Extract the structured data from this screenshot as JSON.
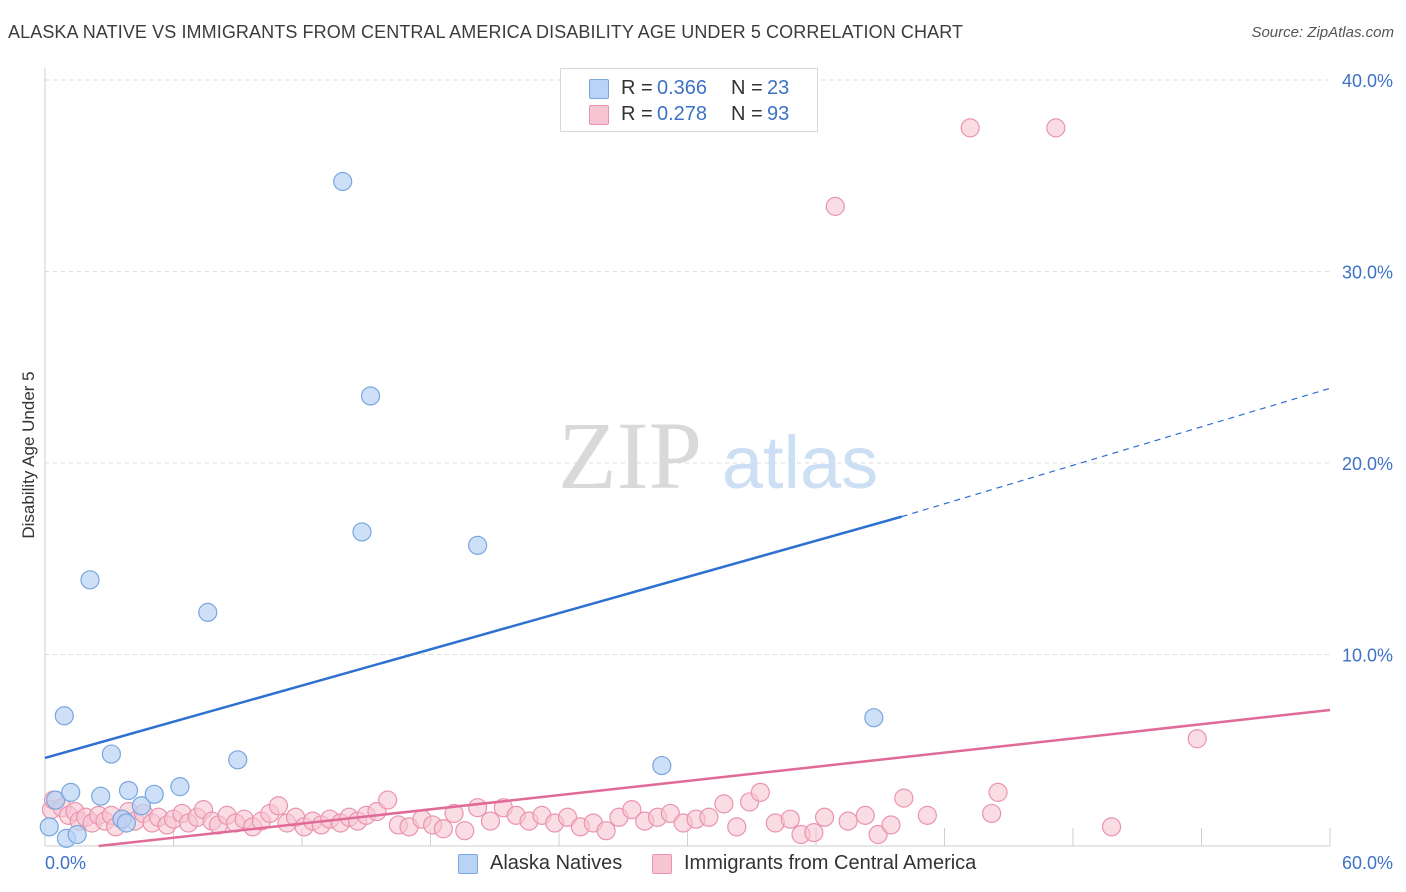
{
  "title": "ALASKA NATIVE VS IMMIGRANTS FROM CENTRAL AMERICA DISABILITY AGE UNDER 5 CORRELATION CHART",
  "source": "Source: ZipAtlas.com",
  "watermark": {
    "zip": "ZIP",
    "atlas": "atlas"
  },
  "legend": {
    "r_label": "R =",
    "n_label": "N =",
    "series": [
      {
        "r": "0.366",
        "n": "23"
      },
      {
        "r": "0.278",
        "n": "93"
      }
    ]
  },
  "colors": {
    "blue_fill": "#b8d3f5",
    "blue_stroke": "#7aa6de",
    "blue_line": "#2d70d0",
    "pink_fill": "#f7c4d3",
    "pink_stroke": "#ea94ae",
    "pink_line": "#e06a98",
    "grid": "#dcdcdc",
    "tick_label": "#3d72c6"
  },
  "chart_data": {
    "type": "scatter",
    "title": "ALASKA NATIVE VS IMMIGRANTS FROM CENTRAL AMERICA DISABILITY AGE UNDER 5 CORRELATION CHART",
    "xlabel": "",
    "ylabel": "Disability Age Under 5",
    "xlim": [
      0,
      60
    ],
    "ylim": [
      0,
      40
    ],
    "x_ticks": [
      "0.0%",
      "60.0%"
    ],
    "y_ticks": [
      {
        "value": 10,
        "label": "10.0%"
      },
      {
        "value": 20,
        "label": "20.0%"
      },
      {
        "value": 30,
        "label": "30.0%"
      },
      {
        "value": 40,
        "label": "40.0%"
      }
    ],
    "series": [
      {
        "name": "Alaska Natives",
        "r": 0.366,
        "n": 23,
        "trend": {
          "x0": 0,
          "y0": 4.6,
          "x_solid_end": 40.0,
          "y_solid_end": 17.2,
          "x1": 60,
          "y1": 23.9
        },
        "points": [
          [
            0.2,
            1.0
          ],
          [
            0.5,
            2.4
          ],
          [
            0.9,
            6.8
          ],
          [
            1.0,
            0.4
          ],
          [
            1.2,
            2.8
          ],
          [
            1.5,
            0.6
          ],
          [
            2.1,
            13.9
          ],
          [
            2.6,
            2.6
          ],
          [
            3.1,
            4.8
          ],
          [
            3.6,
            1.4
          ],
          [
            3.8,
            1.2
          ],
          [
            3.9,
            2.9
          ],
          [
            4.5,
            2.1
          ],
          [
            5.1,
            2.7
          ],
          [
            6.3,
            3.1
          ],
          [
            7.6,
            12.2
          ],
          [
            9.0,
            4.5
          ],
          [
            13.9,
            34.7
          ],
          [
            14.8,
            16.4
          ],
          [
            15.2,
            23.5
          ],
          [
            20.2,
            15.7
          ],
          [
            28.8,
            4.2
          ],
          [
            38.7,
            6.7
          ]
        ]
      },
      {
        "name": "Immigrants from Central America",
        "r": 0.278,
        "n": 93,
        "trend": {
          "x0": 2.5,
          "y0": 0.0,
          "x1": 60,
          "y1": 7.1
        },
        "points": [
          [
            0.3,
            1.9
          ],
          [
            0.4,
            2.4
          ],
          [
            0.8,
            2.0
          ],
          [
            1.1,
            1.6
          ],
          [
            1.4,
            1.8
          ],
          [
            1.6,
            1.3
          ],
          [
            1.9,
            1.5
          ],
          [
            2.2,
            1.2
          ],
          [
            2.5,
            1.6
          ],
          [
            2.8,
            1.3
          ],
          [
            3.1,
            1.6
          ],
          [
            3.3,
            1.0
          ],
          [
            3.6,
            1.4
          ],
          [
            3.9,
            1.8
          ],
          [
            4.2,
            1.3
          ],
          [
            4.6,
            1.7
          ],
          [
            5.0,
            1.2
          ],
          [
            5.3,
            1.5
          ],
          [
            5.7,
            1.1
          ],
          [
            6.0,
            1.4
          ],
          [
            6.4,
            1.7
          ],
          [
            6.7,
            1.2
          ],
          [
            7.1,
            1.5
          ],
          [
            7.4,
            1.9
          ],
          [
            7.8,
            1.3
          ],
          [
            8.1,
            1.1
          ],
          [
            8.5,
            1.6
          ],
          [
            8.9,
            1.2
          ],
          [
            9.3,
            1.4
          ],
          [
            9.7,
            1.0
          ],
          [
            10.1,
            1.3
          ],
          [
            10.5,
            1.7
          ],
          [
            10.9,
            2.1
          ],
          [
            11.3,
            1.2
          ],
          [
            11.7,
            1.5
          ],
          [
            12.1,
            1.0
          ],
          [
            12.5,
            1.3
          ],
          [
            12.9,
            1.1
          ],
          [
            13.3,
            1.4
          ],
          [
            13.8,
            1.2
          ],
          [
            14.2,
            1.5
          ],
          [
            14.6,
            1.3
          ],
          [
            15.0,
            1.6
          ],
          [
            15.5,
            1.8
          ],
          [
            16.0,
            2.4
          ],
          [
            16.5,
            1.1
          ],
          [
            17.0,
            1.0
          ],
          [
            17.6,
            1.4
          ],
          [
            18.1,
            1.1
          ],
          [
            18.6,
            0.9
          ],
          [
            19.1,
            1.7
          ],
          [
            19.6,
            0.8
          ],
          [
            20.2,
            2.0
          ],
          [
            20.8,
            1.3
          ],
          [
            21.4,
            2.0
          ],
          [
            22.0,
            1.6
          ],
          [
            22.6,
            1.3
          ],
          [
            23.2,
            1.6
          ],
          [
            23.8,
            1.2
          ],
          [
            24.4,
            1.5
          ],
          [
            25.0,
            1.0
          ],
          [
            25.6,
            1.2
          ],
          [
            26.2,
            0.8
          ],
          [
            26.8,
            1.5
          ],
          [
            27.4,
            1.9
          ],
          [
            28.0,
            1.3
          ],
          [
            28.6,
            1.5
          ],
          [
            29.2,
            1.7
          ],
          [
            29.8,
            1.2
          ],
          [
            30.4,
            1.4
          ],
          [
            31.0,
            1.5
          ],
          [
            31.7,
            2.2
          ],
          [
            32.3,
            1.0
          ],
          [
            32.9,
            2.3
          ],
          [
            33.4,
            2.8
          ],
          [
            34.1,
            1.2
          ],
          [
            34.8,
            1.4
          ],
          [
            35.3,
            0.6
          ],
          [
            35.9,
            0.7
          ],
          [
            36.4,
            1.5
          ],
          [
            36.9,
            33.4
          ],
          [
            37.5,
            1.3
          ],
          [
            38.3,
            1.6
          ],
          [
            38.9,
            0.6
          ],
          [
            39.5,
            1.1
          ],
          [
            40.1,
            2.5
          ],
          [
            41.2,
            1.6
          ],
          [
            43.2,
            37.5
          ],
          [
            44.2,
            1.7
          ],
          [
            44.5,
            2.8
          ],
          [
            47.2,
            37.5
          ],
          [
            49.8,
            1.0
          ],
          [
            53.8,
            5.6
          ]
        ]
      }
    ],
    "extra_points_note": ""
  }
}
